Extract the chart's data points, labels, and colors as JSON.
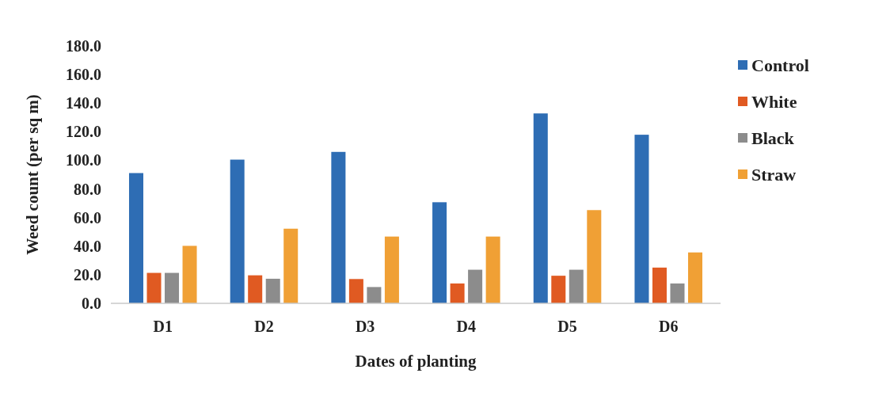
{
  "chart_data": {
    "type": "bar",
    "xlabel": "Dates of planting",
    "ylabel": "Weed count (per sq m)",
    "categories": [
      "D1",
      "D2",
      "D3",
      "D4",
      "D5",
      "D6"
    ],
    "series": [
      {
        "name": "Control",
        "color": "#2e6db4",
        "values": [
          91.1,
          100.5,
          105.9,
          70.7,
          132.8,
          117.9
        ]
      },
      {
        "name": "White",
        "color": "#e05a22",
        "values": [
          21.3,
          19.6,
          17.0,
          13.9,
          19.3,
          25.0
        ]
      },
      {
        "name": "Black",
        "color": "#8c8c8c",
        "values": [
          21.3,
          17.2,
          11.4,
          23.5,
          23.5,
          13.9
        ]
      },
      {
        "name": "Straw",
        "color": "#f0a035",
        "values": [
          40.2,
          52.2,
          46.7,
          46.7,
          65.2,
          35.6
        ]
      }
    ],
    "ylim": [
      0,
      180
    ],
    "yticks": [
      {
        "value": 0,
        "label": "0.0"
      },
      {
        "value": 20,
        "label": "20.0"
      },
      {
        "value": 40,
        "label": "40.0"
      },
      {
        "value": 60,
        "label": "60.0"
      },
      {
        "value": 80,
        "label": "80.0"
      },
      {
        "value": 100,
        "label": "100.0"
      },
      {
        "value": 120,
        "label": "120.0"
      },
      {
        "value": 140,
        "label": "140.0"
      },
      {
        "value": 160,
        "label": "160.0"
      },
      {
        "value": 180,
        "label": "180.0"
      }
    ],
    "grid": false,
    "legend": "right"
  }
}
